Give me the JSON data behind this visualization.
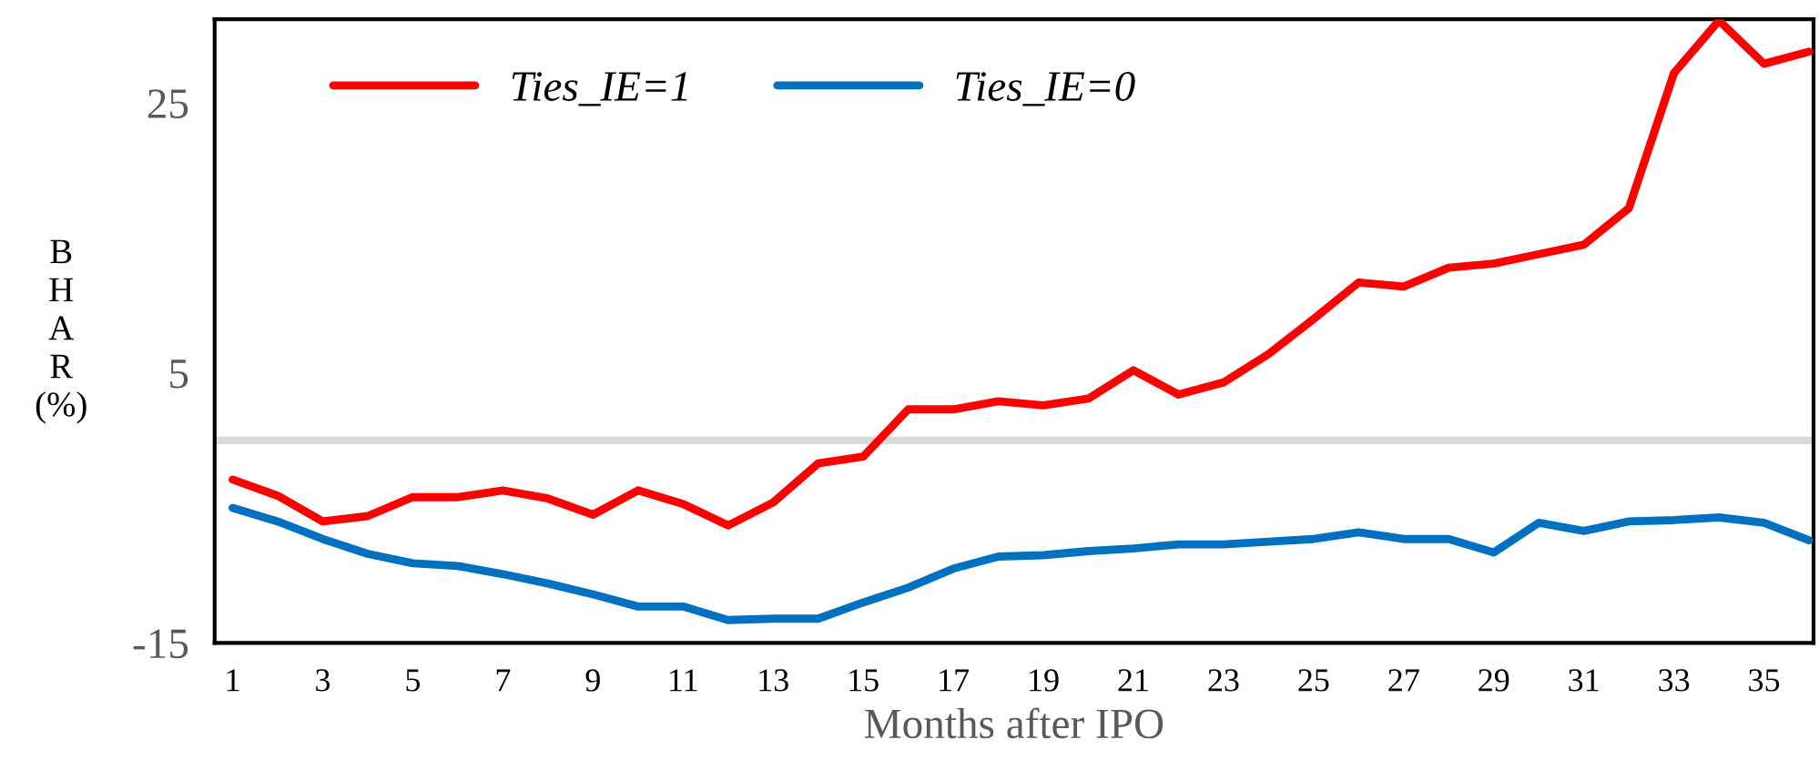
{
  "chart_data": {
    "type": "line",
    "xlabel": "Months after IPO",
    "ylabel": "B\nH\nA\nR\n(%)",
    "categories": [
      "1",
      null,
      "3",
      null,
      "5",
      null,
      "7",
      null,
      "9",
      null,
      "11",
      null,
      "13",
      null,
      "15",
      null,
      "17",
      null,
      "19",
      null,
      "21",
      null,
      "23",
      null,
      "25",
      null,
      "27",
      null,
      "29",
      null,
      "31",
      null,
      "33",
      null,
      "35",
      null
    ],
    "series": [
      {
        "name": "Ties_IE=1",
        "color": "#ff0000",
        "values": [
          -2.9,
          -4.1,
          -6.0,
          -5.6,
          -4.2,
          -4.2,
          -3.7,
          -4.3,
          -5.5,
          -3.7,
          -4.7,
          -6.3,
          -4.6,
          -1.7,
          -1.2,
          2.3,
          2.3,
          2.9,
          2.6,
          3.1,
          5.2,
          3.4,
          4.3,
          6.4,
          9.0,
          11.7,
          11.4,
          12.8,
          13.1,
          13.8,
          14.5,
          17.2,
          27.2,
          31.1,
          27.9,
          28.8
        ]
      },
      {
        "name": "Ties_IE=0",
        "color": "#0070c0",
        "values": [
          -5.0,
          -6.0,
          -7.3,
          -8.4,
          -9.1,
          -9.3,
          -9.9,
          -10.6,
          -11.4,
          -12.3,
          -12.3,
          -13.3,
          -13.2,
          -13.2,
          -12.0,
          -10.9,
          -9.5,
          -8.6,
          -8.5,
          -8.2,
          -8.0,
          -7.7,
          -7.7,
          -7.5,
          -7.3,
          -6.8,
          -7.3,
          -7.3,
          -8.3,
          -6.1,
          -6.7,
          -6.0,
          -5.9,
          -5.7,
          -6.1,
          -7.4
        ]
      }
    ],
    "ylim": [
      -15,
      31.2
    ],
    "yticks": [
      -15,
      5,
      25
    ],
    "grid": false,
    "legend": "top left",
    "marker": "none",
    "line_style": "solid",
    "ref_lines": [
      {
        "axis": "y",
        "value": 0,
        "color": "#d9d9d9"
      }
    ]
  }
}
